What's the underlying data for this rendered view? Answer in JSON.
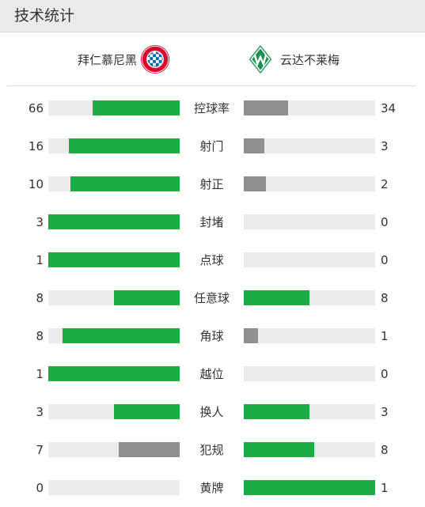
{
  "header": {
    "title": "技术统计"
  },
  "teams": {
    "home": {
      "name": "拜仁慕尼黑",
      "logo_icon": "bayern-munich-logo-icon"
    },
    "away": {
      "name": "云达不莱梅",
      "logo_icon": "werder-bremen-logo-icon"
    }
  },
  "colors": {
    "leader": "#1aad46",
    "trailer": "#8f8f8f",
    "track": "#ebebeb"
  },
  "stats": [
    {
      "label": "控球率",
      "home": "66",
      "away": "34",
      "home_value": 66,
      "away_value": 34
    },
    {
      "label": "射门",
      "home": "16",
      "away": "3",
      "home_value": 16,
      "away_value": 3
    },
    {
      "label": "射正",
      "home": "10",
      "away": "2",
      "home_value": 10,
      "away_value": 2
    },
    {
      "label": "封堵",
      "home": "3",
      "away": "0",
      "home_value": 3,
      "away_value": 0
    },
    {
      "label": "点球",
      "home": "1",
      "away": "0",
      "home_value": 1,
      "away_value": 0
    },
    {
      "label": "任意球",
      "home": "8",
      "away": "8",
      "home_value": 8,
      "away_value": 8
    },
    {
      "label": "角球",
      "home": "8",
      "away": "1",
      "home_value": 8,
      "away_value": 1
    },
    {
      "label": "越位",
      "home": "1",
      "away": "0",
      "home_value": 1,
      "away_value": 0
    },
    {
      "label": "换人",
      "home": "3",
      "away": "3",
      "home_value": 3,
      "away_value": 3
    },
    {
      "label": "犯规",
      "home": "7",
      "away": "8",
      "home_value": 7,
      "away_value": 8
    },
    {
      "label": "黄牌",
      "home": "0",
      "away": "1",
      "home_value": 0,
      "away_value": 1
    }
  ]
}
